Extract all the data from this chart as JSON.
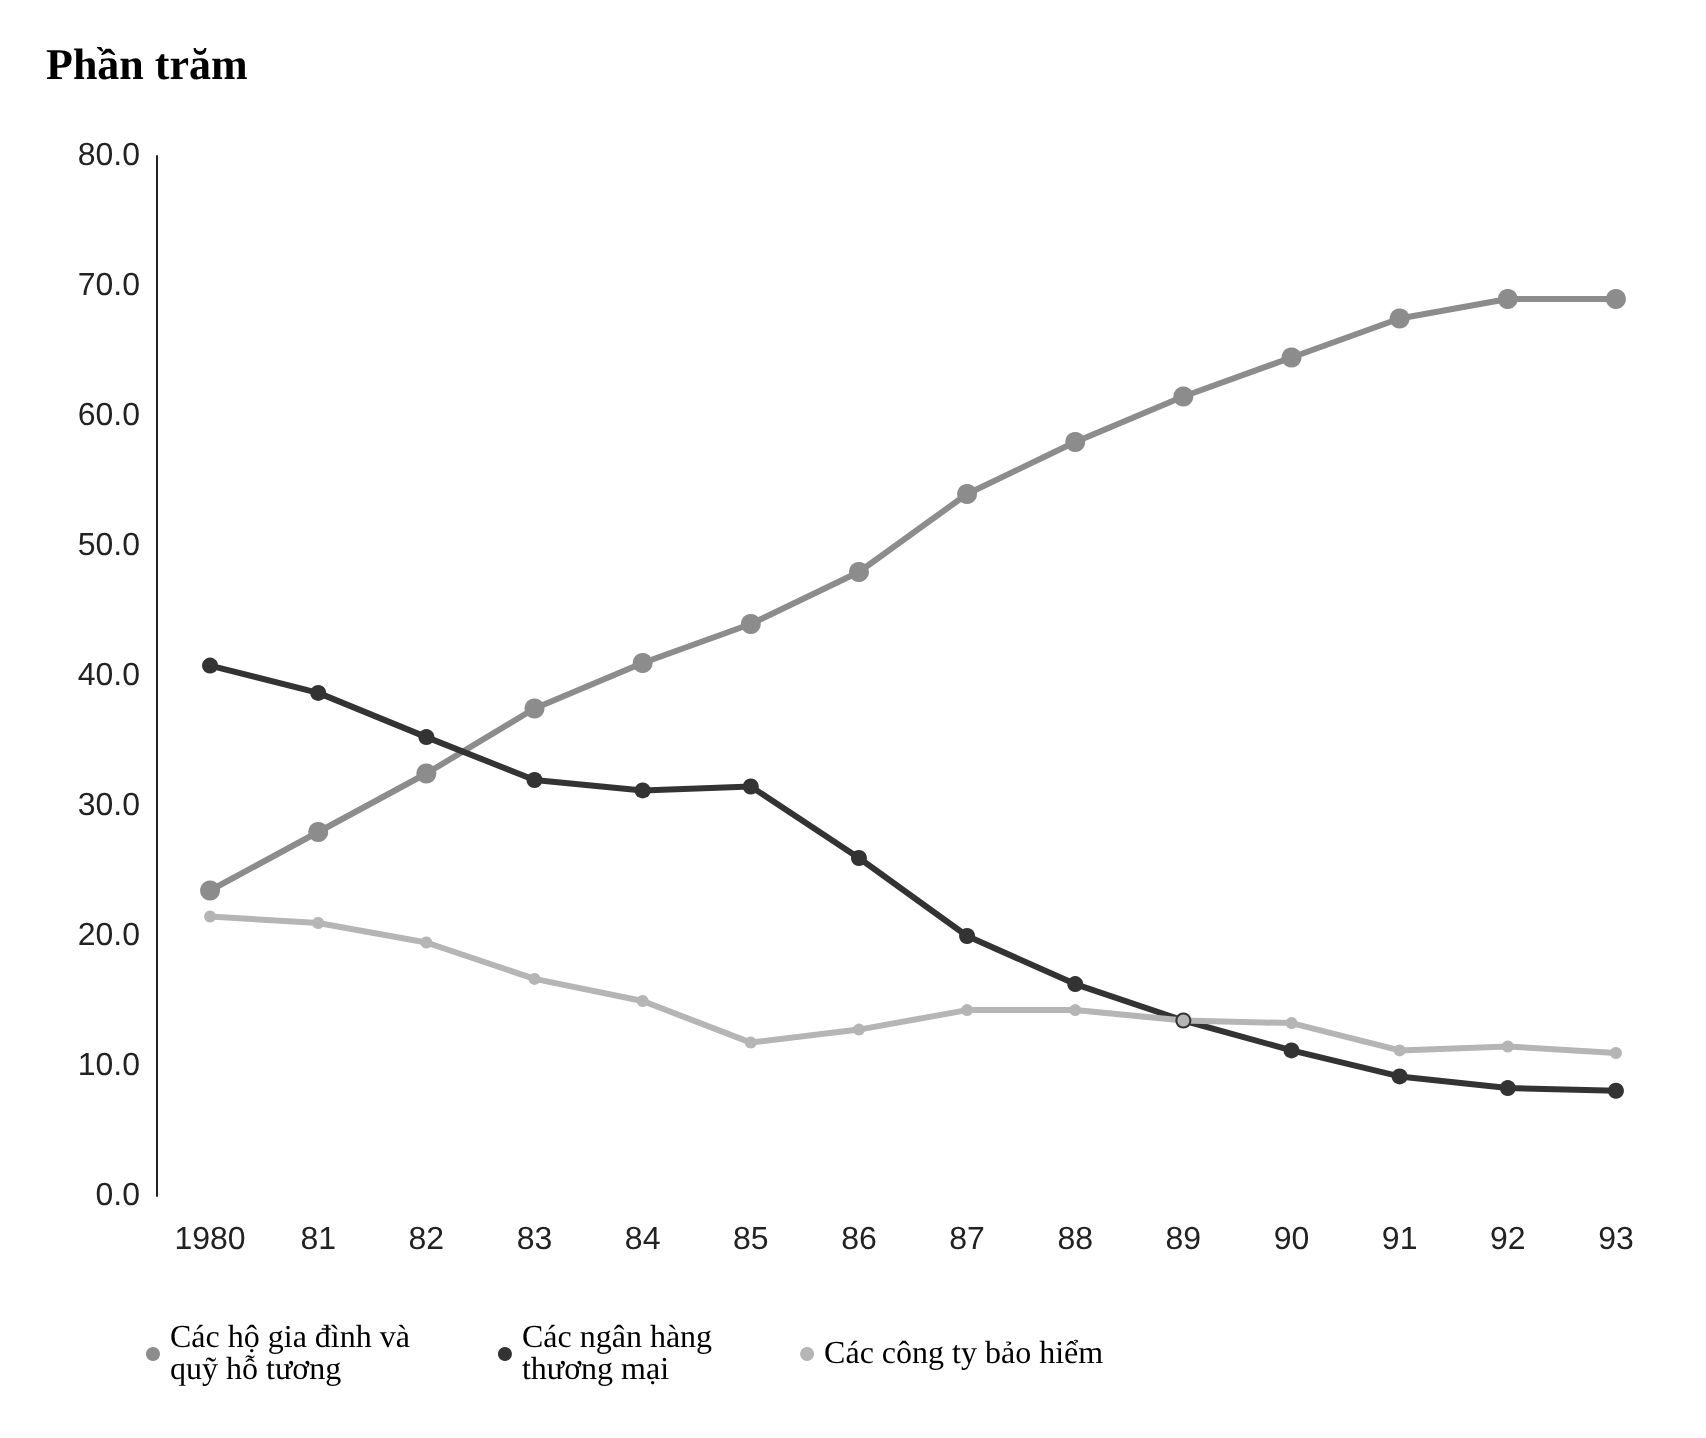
{
  "chart_data": {
    "type": "line",
    "title": "Phần trăm",
    "categories": [
      "1980",
      "81",
      "82",
      "83",
      "84",
      "85",
      "86",
      "87",
      "88",
      "89",
      "90",
      "91",
      "92",
      "93"
    ],
    "series": [
      {
        "name": "Các hộ gia đình và quỹ hỗ tương",
        "color": "#8c8c8c",
        "values": [
          23.5,
          28,
          32.5,
          37.5,
          41,
          44,
          48,
          54,
          58,
          61.5,
          64.5,
          67.5,
          69,
          69
        ]
      },
      {
        "name": "Các ngân hàng thương mại",
        "color": "#333333",
        "values": [
          40.8,
          38.7,
          35.3,
          32,
          31.2,
          31.5,
          26,
          20,
          16.3,
          13.5,
          11.2,
          9.2,
          8.3,
          8.1
        ]
      },
      {
        "name": "Các công ty bảo hiểm",
        "color": "#b5b5b5",
        "values": [
          21.5,
          21,
          19.5,
          16.7,
          15,
          11.8,
          12.8,
          14.3,
          14.3,
          13.5,
          13.3,
          11.2,
          11.5,
          11
        ]
      }
    ],
    "ylim": [
      0,
      80
    ],
    "yticks": [
      {
        "value": 0,
        "label": "0.0"
      },
      {
        "value": 10,
        "label": "10.0"
      },
      {
        "value": 20,
        "label": "20.0"
      },
      {
        "value": 30,
        "label": "30.0"
      },
      {
        "value": 40,
        "label": "40.0"
      },
      {
        "value": 50,
        "label": "50.0"
      },
      {
        "value": 60,
        "label": "60.0"
      },
      {
        "value": 70,
        "label": "70.0"
      },
      {
        "value": 80,
        "label": "80.0"
      }
    ],
    "grid": false,
    "legend": "bottom",
    "marker": "circle",
    "line_style": "solid"
  }
}
